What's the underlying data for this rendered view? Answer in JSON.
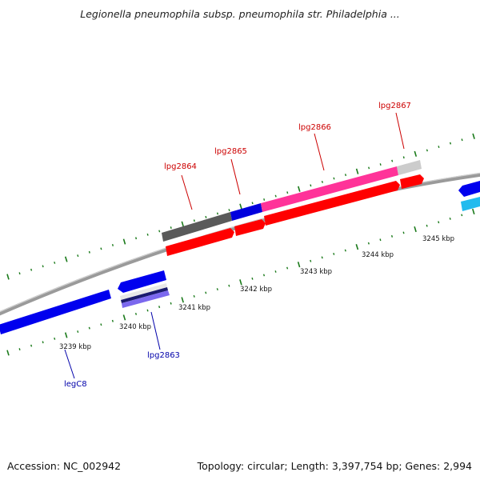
{
  "title": "Legionella pneumophila subsp. pneumophila str. Philadelphia ...",
  "footer": {
    "accession": "Accession: NC_002942",
    "stats": "Topology: circular; Length: 3,397,754 bp; Genes: 2,994"
  },
  "colors": {
    "backbone": "#8c8c8c",
    "ticks": "#1a7a1a",
    "forward_label": "#cc0000",
    "reverse_label": "#0000aa",
    "red_gene": "#ff0000",
    "blue_gene": "#0000ee",
    "cyan_gene": "#22bbee",
    "magenta_gene": "#ff3399",
    "dark_gray_gene": "#555555",
    "light_gray_gene": "#cccccc",
    "purple_gene": "#6a5acd"
  },
  "scale": {
    "unit": "kbp",
    "tick_labels": [
      "3239 kbp",
      "3240 kbp",
      "3241 kbp",
      "3242 kbp",
      "3243 kbp",
      "3244 kbp",
      "3245 kbp"
    ]
  },
  "gene_labels": [
    {
      "name": "lpg2864",
      "strand": "forward"
    },
    {
      "name": "lpg2865",
      "strand": "forward"
    },
    {
      "name": "lpg2866",
      "strand": "forward"
    },
    {
      "name": "lpg2867",
      "strand": "forward"
    },
    {
      "name": "lpg2863",
      "strand": "reverse"
    },
    {
      "name": "legC8",
      "strand": "reverse"
    }
  ]
}
